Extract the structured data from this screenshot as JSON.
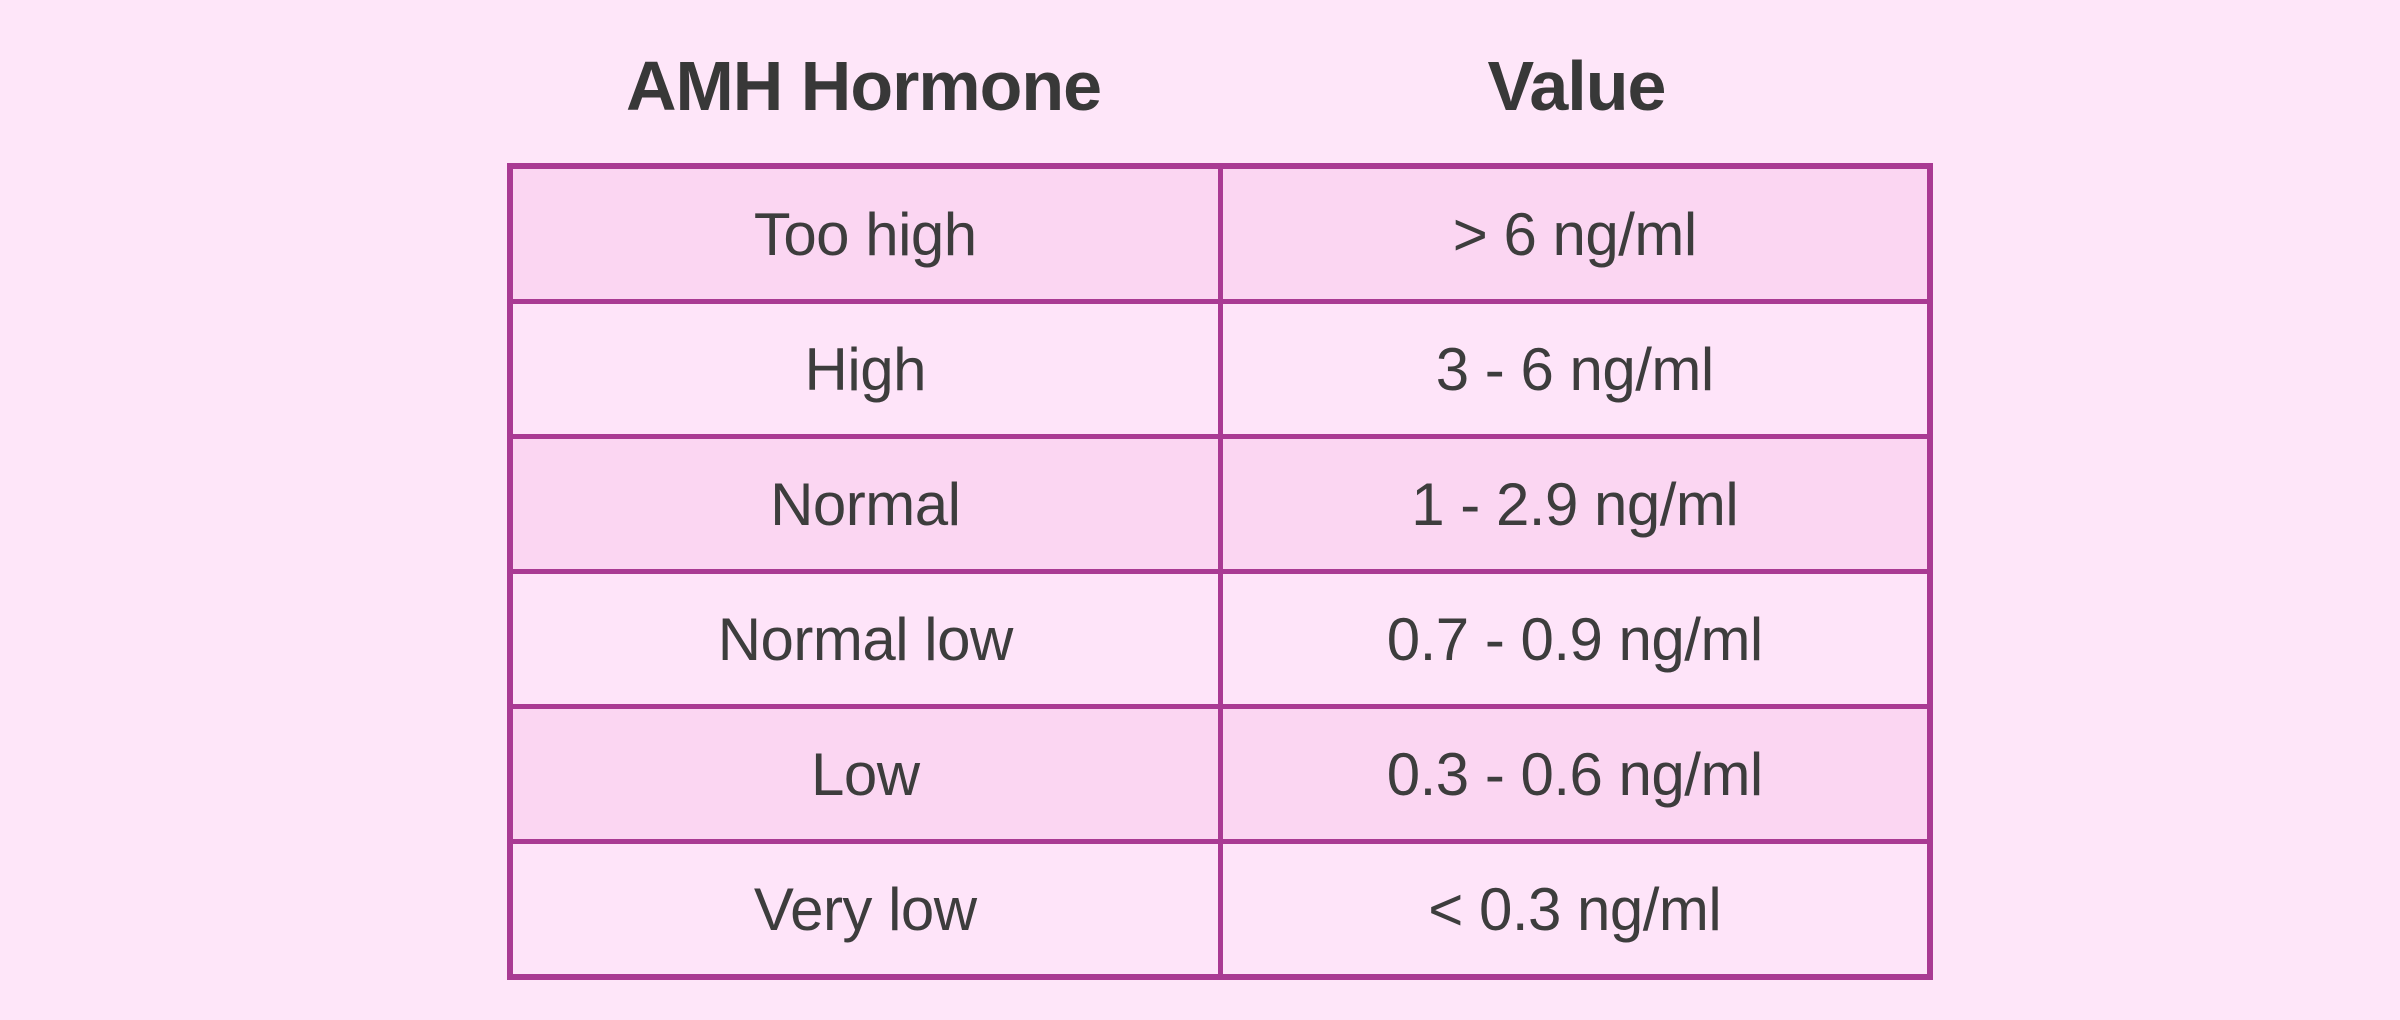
{
  "colors": {
    "bg": "#fee6f9",
    "row_dark": "#fbd6f2",
    "row_light": "#fee4f9",
    "border": "#a93a93",
    "text": "#3d3d3d",
    "header_text": "#383838"
  },
  "chart_data": {
    "type": "table",
    "title": "",
    "columns": [
      "AMH Hormone",
      "Value"
    ],
    "rows": [
      {
        "label": "Too high",
        "value": "> 6 ng/ml"
      },
      {
        "label": "High",
        "value": "3 - 6 ng/ml"
      },
      {
        "label": "Normal",
        "value": "1 - 2.9 ng/ml"
      },
      {
        "label": "Normal low",
        "value": "0.7 - 0.9 ng/ml"
      },
      {
        "label": "Low",
        "value": "0.3 - 0.6 ng/ml"
      },
      {
        "label": "Very low",
        "value": "< 0.3 ng/ml"
      }
    ]
  }
}
